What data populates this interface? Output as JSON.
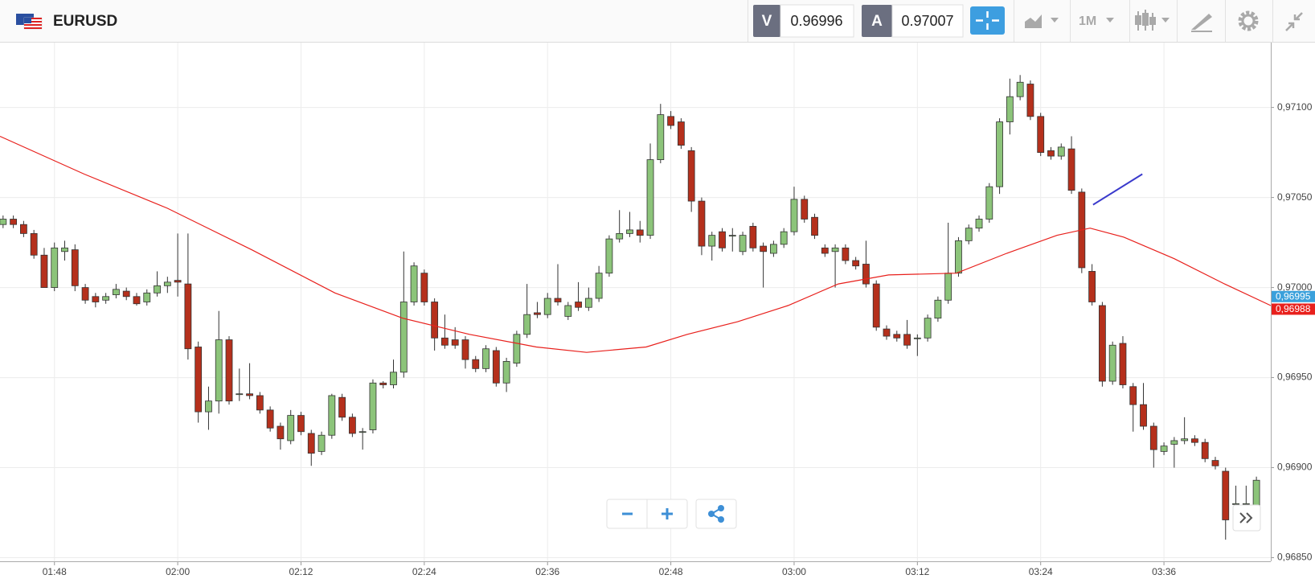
{
  "header": {
    "symbol": "EURUSD",
    "bid_label": "V",
    "bid": 0.96996,
    "ask_label": "A",
    "ask": 0.97007,
    "timeframe": "1M"
  },
  "chart_data": {
    "type": "candlestick",
    "up_color": "#8cc47a",
    "down_color": "#b5301c",
    "x": [
      103,
      104,
      105,
      106,
      107,
      108,
      109,
      110,
      111,
      112,
      113,
      114,
      115,
      116,
      117,
      118,
      119,
      120,
      121,
      122,
      123,
      124,
      125,
      126,
      127,
      128,
      129,
      130,
      131,
      132,
      133,
      134,
      135,
      136,
      137,
      138,
      139,
      140,
      141,
      142,
      143,
      144,
      145,
      146,
      147,
      148,
      149,
      150,
      151,
      152,
      153,
      154,
      155,
      156,
      157,
      158,
      159,
      160,
      161,
      162,
      163,
      164,
      165,
      166,
      167,
      168,
      169,
      170,
      171,
      172,
      173,
      174,
      175,
      176,
      177,
      178,
      179,
      180,
      181,
      182,
      183,
      184,
      185,
      186,
      187,
      188,
      189,
      190,
      191,
      192,
      193,
      194,
      195,
      196,
      197,
      198,
      199,
      200,
      201,
      202,
      203,
      204,
      205,
      206,
      207,
      208,
      209,
      210,
      211,
      212,
      213,
      214,
      215,
      216,
      217,
      218,
      219,
      220,
      221,
      222,
      223,
      224,
      225
    ],
    "open": [
      0.97035,
      0.97038,
      0.97035,
      0.9703,
      0.97018,
      0.97,
      0.9702,
      0.97021,
      0.97,
      0.96995,
      0.96993,
      0.96996,
      0.96998,
      0.96995,
      0.96992,
      0.96997,
      0.97001,
      0.97004,
      0.97002,
      0.96967,
      0.96931,
      0.96937,
      0.96971,
      0.96941,
      0.96941,
      0.9694,
      0.96932,
      0.96923,
      0.96915,
      0.96929,
      0.96919,
      0.96909,
      0.96918,
      0.96939,
      0.96928,
      0.9692,
      0.96921,
      0.96947,
      0.96946,
      0.96953,
      0.96992,
      0.97008,
      0.96992,
      0.96972,
      0.96971,
      0.96971,
      0.9696,
      0.96955,
      0.96965,
      0.96947,
      0.96958,
      0.96974,
      0.96986,
      0.96985,
      0.96994,
      0.96984,
      0.96992,
      0.96989,
      0.96994,
      0.97008,
      0.97027,
      0.9703,
      0.97032,
      0.97029,
      0.97071,
      0.97095,
      0.97092,
      0.97076,
      0.97048,
      0.97023,
      0.97031,
      0.97029,
      0.9702,
      0.97034,
      0.97023,
      0.97019,
      0.97024,
      0.97031,
      0.97049,
      0.97039,
      0.97022,
      0.9702,
      0.97022,
      0.97015,
      0.97013,
      0.97002,
      0.96977,
      0.96974,
      0.96974,
      0.96972,
      0.96972,
      0.96983,
      0.96993,
      0.97008,
      0.97026,
      0.97033,
      0.97038,
      0.97056,
      0.97092,
      0.97106,
      0.97113,
      0.97095,
      0.97076,
      0.97073,
      0.97077,
      0.97053,
      0.97009,
      0.9699,
      0.96948,
      0.96969,
      0.96945,
      0.96935,
      0.96923,
      0.96909,
      0.96913,
      0.96915,
      0.96916,
      0.96914,
      0.96904,
      0.96898,
      0.9688,
      0.9688,
      0.96878
    ],
    "high": [
      0.9704,
      0.9704,
      0.97037,
      0.97032,
      0.97022,
      0.97025,
      0.97026,
      0.97024,
      0.97002,
      0.96997,
      0.96997,
      0.97002,
      0.97,
      0.96997,
      0.96999,
      0.97009,
      0.97006,
      0.9703,
      0.9703,
      0.9697,
      0.96945,
      0.96987,
      0.96973,
      0.96955,
      0.96958,
      0.96942,
      0.96934,
      0.96925,
      0.96932,
      0.96931,
      0.96921,
      0.9692,
      0.96941,
      0.96941,
      0.9693,
      0.96922,
      0.96949,
      0.96948,
      0.9696,
      0.9702,
      0.97014,
      0.9701,
      0.96994,
      0.96985,
      0.96978,
      0.96973,
      0.96962,
      0.96968,
      0.96967,
      0.96961,
      0.96976,
      0.97002,
      0.96992,
      0.96997,
      0.97013,
      0.96992,
      0.97003,
      0.97,
      0.97012,
      0.97029,
      0.97043,
      0.97042,
      0.97037,
      0.9708,
      0.97102,
      0.97098,
      0.97094,
      0.97078,
      0.9705,
      0.97031,
      0.97033,
      0.97033,
      0.97031,
      0.97036,
      0.97025,
      0.97026,
      0.97033,
      0.97056,
      0.97051,
      0.97041,
      0.97024,
      0.97024,
      0.97024,
      0.97017,
      0.97026,
      0.97004,
      0.96979,
      0.96976,
      0.96982,
      0.96974,
      0.96985,
      0.96995,
      0.97036,
      0.97028,
      0.97035,
      0.9704,
      0.97058,
      0.97094,
      0.97116,
      0.97118,
      0.97115,
      0.97097,
      0.97078,
      0.9708,
      0.97084,
      0.97055,
      0.97013,
      0.96992,
      0.9697,
      0.96973,
      0.96947,
      0.96947,
      0.96925,
      0.96914,
      0.96917,
      0.96928,
      0.96918,
      0.96916,
      0.96906,
      0.969,
      0.9689,
      0.9689,
      0.96895
    ],
    "low": [
      0.97033,
      0.97033,
      0.97028,
      0.97016,
      0.97,
      0.96998,
      0.97015,
      0.96998,
      0.96991,
      0.96989,
      0.96991,
      0.96994,
      0.96993,
      0.9699,
      0.9699,
      0.96995,
      0.96997,
      0.96995,
      0.9696,
      0.96925,
      0.96921,
      0.9693,
      0.96935,
      0.96937,
      0.96938,
      0.9693,
      0.9692,
      0.9691,
      0.96913,
      0.96918,
      0.96901,
      0.96907,
      0.96916,
      0.96926,
      0.96917,
      0.9691,
      0.96919,
      0.96944,
      0.96944,
      0.9695,
      0.9699,
      0.9699,
      0.96965,
      0.96966,
      0.96966,
      0.96955,
      0.96953,
      0.96953,
      0.96945,
      0.96942,
      0.96956,
      0.96972,
      0.96983,
      0.96983,
      0.9699,
      0.96982,
      0.96987,
      0.96987,
      0.96992,
      0.97006,
      0.97025,
      0.97028,
      0.97025,
      0.97027,
      0.97069,
      0.97088,
      0.97077,
      0.97042,
      0.97018,
      0.97015,
      0.9702,
      0.9702,
      0.97018,
      0.9702,
      0.97,
      0.97017,
      0.97022,
      0.97029,
      0.97036,
      0.97027,
      0.97017,
      0.97,
      0.97013,
      0.9701,
      0.97,
      0.96976,
      0.96971,
      0.9697,
      0.96966,
      0.96962,
      0.9697,
      0.96981,
      0.96991,
      0.97006,
      0.97024,
      0.97031,
      0.97036,
      0.97052,
      0.97085,
      0.97104,
      0.97093,
      0.97073,
      0.97071,
      0.97071,
      0.97052,
      0.97008,
      0.9699,
      0.96945,
      0.96946,
      0.96944,
      0.9692,
      0.96921,
      0.969,
      0.96907,
      0.969,
      0.96913,
      0.96912,
      0.96903,
      0.96899,
      0.9686,
      0.96878,
      0.96878,
      0.96876
    ],
    "close": [
      0.97038,
      0.97035,
      0.9703,
      0.97018,
      0.97,
      0.97022,
      0.97022,
      0.97001,
      0.96993,
      0.96992,
      0.96995,
      0.96999,
      0.96995,
      0.96991,
      0.96997,
      0.97001,
      0.97003,
      0.97003,
      0.96966,
      0.96931,
      0.96937,
      0.96971,
      0.96937,
      0.96941,
      0.9694,
      0.96932,
      0.96922,
      0.96916,
      0.96929,
      0.9692,
      0.96908,
      0.96918,
      0.9694,
      0.96928,
      0.96919,
      0.9692,
      0.96947,
      0.96946,
      0.96953,
      0.96992,
      0.97012,
      0.96992,
      0.96972,
      0.96968,
      0.96968,
      0.9696,
      0.96955,
      0.96966,
      0.96947,
      0.96959,
      0.96974,
      0.96985,
      0.96985,
      0.96994,
      0.96992,
      0.9699,
      0.96989,
      0.96994,
      0.97008,
      0.97027,
      0.9703,
      0.97032,
      0.97029,
      0.97071,
      0.97096,
      0.9709,
      0.97079,
      0.97048,
      0.97023,
      0.97029,
      0.97022,
      0.97029,
      0.97029,
      0.97022,
      0.9702,
      0.97024,
      0.97031,
      0.97049,
      0.97038,
      0.97029,
      0.97019,
      0.97022,
      0.97015,
      0.97012,
      0.97002,
      0.96978,
      0.96973,
      0.96972,
      0.96968,
      0.96972,
      0.96983,
      0.96993,
      0.97008,
      0.97026,
      0.97033,
      0.97038,
      0.97056,
      0.97092,
      0.97106,
      0.97114,
      0.97095,
      0.97075,
      0.97073,
      0.97078,
      0.97054,
      0.97011,
      0.96992,
      0.96948,
      0.96968,
      0.96946,
      0.96935,
      0.96923,
      0.9691,
      0.96912,
      0.96915,
      0.96916,
      0.96914,
      0.96905,
      0.96901,
      0.96871,
      0.9688,
      0.9688,
      0.96893
    ],
    "moving_average": {
      "color": "#e8201c",
      "x": [
        102.7,
        110.9,
        119.0,
        127.2,
        135.3,
        141.9,
        148.4,
        154.9,
        159.8,
        165.6,
        169.6,
        174.5,
        179.4,
        184.3,
        189.2,
        195.8,
        200.7,
        205.6,
        208.8,
        212.1,
        217.0,
        221.9,
        226.4
      ],
      "values": [
        0.97084,
        0.97063,
        0.97044,
        0.97021,
        0.96997,
        0.96983,
        0.96974,
        0.96967,
        0.96964,
        0.96967,
        0.96974,
        0.96981,
        0.9699,
        0.97002,
        0.97007,
        0.97008,
        0.97019,
        0.97029,
        0.97033,
        0.97028,
        0.97016,
        0.97002,
        0.9699
      ]
    },
    "trend_line": {
      "color": "#3a3acc",
      "x": [
        209.1,
        213.9
      ],
      "values": [
        0.97046,
        0.97063
      ]
    },
    "xlim": [
      102.7,
      226.4
    ],
    "ylim": [
      0.96848,
      0.97136
    ],
    "xticks": [
      {
        "value": 108,
        "label": "01:48"
      },
      {
        "value": 120,
        "label": "02:00"
      },
      {
        "value": 132,
        "label": "02:12"
      },
      {
        "value": 144,
        "label": "02:24"
      },
      {
        "value": 156,
        "label": "02:36"
      },
      {
        "value": 168,
        "label": "02:48"
      },
      {
        "value": 180,
        "label": "03:00"
      },
      {
        "value": 192,
        "label": "03:12"
      },
      {
        "value": 204,
        "label": "03:24"
      },
      {
        "value": 216,
        "label": "03:36"
      }
    ],
    "yticks": [
      {
        "value": 0.9685,
        "label": "0,96850"
      },
      {
        "value": 0.969,
        "label": "0,96900"
      },
      {
        "value": 0.9695,
        "label": "0,96950"
      },
      {
        "value": 0.97,
        "label": "0,97000"
      },
      {
        "value": 0.9705,
        "label": "0,97050"
      },
      {
        "value": 0.971,
        "label": "0,97100"
      }
    ],
    "price_tags": [
      {
        "value": 0.96995,
        "label": "0,96995",
        "color": "#3aa0db"
      },
      {
        "value": 0.96988,
        "label": "0,96988",
        "color": "#e8201c"
      }
    ],
    "grid": true
  }
}
